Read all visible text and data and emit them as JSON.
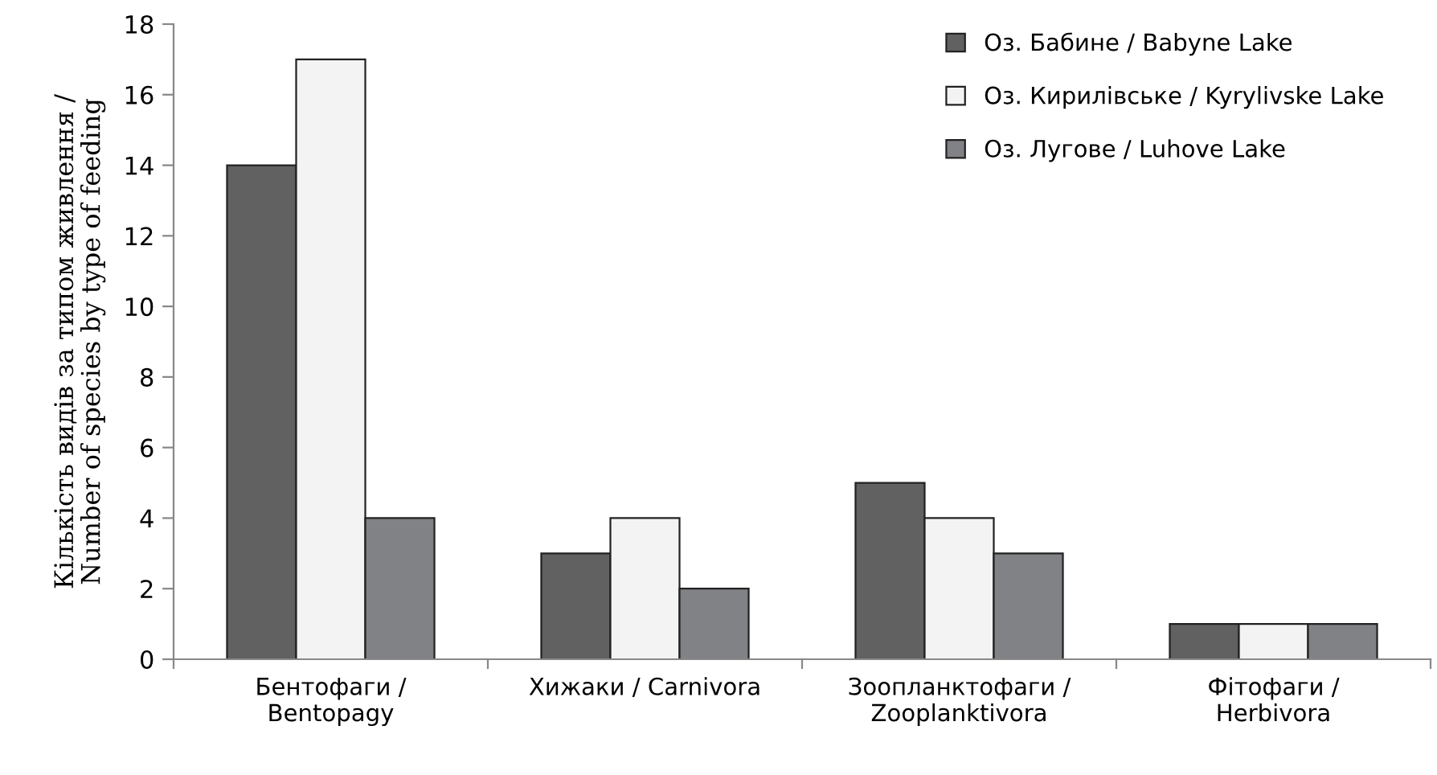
{
  "chart_data": {
    "type": "bar",
    "ylabel": "Кількість видів за типом живлення /\nNumber of species by type of feeding",
    "categories": [
      "Бентофаги /\nBentopagy",
      "Хижаки / Carnivora",
      "Зоопланктофаги /\nZooplanktivora",
      "Фітофаги /\nHerbivora"
    ],
    "series": [
      {
        "name": "Оз. Бабине / Babyne Lake",
        "color": "#616161",
        "values": [
          14,
          3,
          5,
          1
        ]
      },
      {
        "name": "Оз. Кирилівське / Kyrylivske Lake",
        "color": "#f2f3f2",
        "values": [
          17,
          4,
          4,
          1
        ]
      },
      {
        "name": "Оз. Лугове / Luhove Lake",
        "color": "#818285",
        "values": [
          4,
          2,
          3,
          1
        ]
      }
    ],
    "ylim": [
      0,
      18
    ],
    "yticks": [
      0,
      2,
      4,
      6,
      8,
      10,
      12,
      14,
      16,
      18
    ],
    "grid": false,
    "legend": "top right"
  }
}
